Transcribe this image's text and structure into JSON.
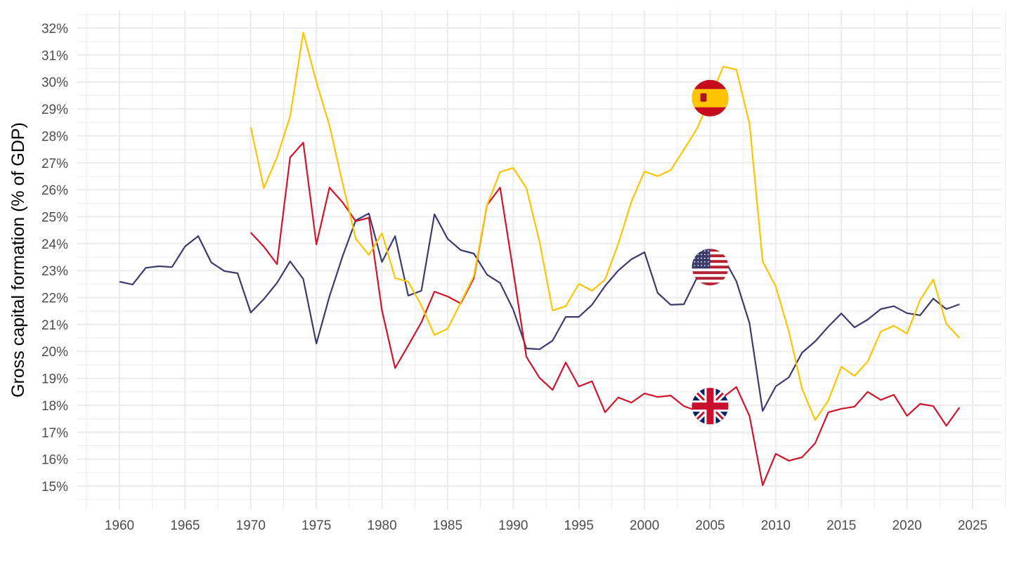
{
  "chart_data": {
    "type": "line",
    "title": "",
    "xlabel": "",
    "ylabel": "Gross capital formation (% of GDP)",
    "xlim": [
      1957.5,
      2027.5
    ],
    "ylim": [
      14.5,
      32.6
    ],
    "grid": true,
    "legend": "flag icons at year 2005 on each line",
    "x_ticks": [
      1960,
      1965,
      1970,
      1975,
      1980,
      1985,
      1990,
      1995,
      2000,
      2005,
      2010,
      2015,
      2020,
      2025
    ],
    "y_ticks": [
      15,
      16,
      17,
      18,
      19,
      20,
      21,
      22,
      23,
      24,
      25,
      26,
      27,
      28,
      29,
      30,
      31,
      32
    ],
    "y_tick_suffix": "%",
    "series": [
      {
        "name": "United States",
        "flag": "us-flag",
        "color": "#3c3b6e",
        "start": 1960,
        "values": [
          22.59,
          22.48,
          23.1,
          23.16,
          23.13,
          23.9,
          24.28,
          23.3,
          22.98,
          22.9,
          21.44,
          21.94,
          22.54,
          23.34,
          22.69,
          20.29,
          22.04,
          23.53,
          24.86,
          25.12,
          23.32,
          24.28,
          22.07,
          22.25,
          25.09,
          24.18,
          23.76,
          23.63,
          22.85,
          22.54,
          21.55,
          20.11,
          20.08,
          20.4,
          21.28,
          21.28,
          21.73,
          22.43,
          23.0,
          23.42,
          23.68,
          22.17,
          21.73,
          21.75,
          22.74,
          23.13,
          23.5,
          22.6,
          21.05,
          17.79,
          18.7,
          19.04,
          19.95,
          20.37,
          20.92,
          21.41,
          20.89,
          21.18,
          21.57,
          21.68,
          21.42,
          21.34,
          21.96,
          21.57,
          21.75
        ]
      },
      {
        "name": "United Kingdom",
        "flag": "uk-flag",
        "color": "#cf142b",
        "start": 1970,
        "values": [
          24.41,
          23.89,
          23.24,
          27.2,
          27.75,
          23.97,
          26.08,
          25.53,
          24.83,
          24.96,
          21.52,
          19.38,
          20.22,
          21.08,
          22.22,
          22.04,
          21.78,
          22.72,
          25.43,
          26.08,
          22.98,
          19.8,
          19.02,
          18.57,
          19.59,
          18.7,
          18.89,
          17.74,
          18.29,
          18.1,
          18.44,
          18.31,
          18.36,
          17.97,
          17.79,
          17.97,
          18.3,
          18.68,
          17.6,
          15.03,
          16.2,
          15.94,
          16.07,
          16.59,
          17.74,
          17.87,
          17.95,
          18.5,
          18.2,
          18.39,
          17.61,
          18.05,
          17.97,
          17.24,
          17.92
        ]
      },
      {
        "name": "Spain",
        "flag": "spain-flag",
        "color": "#ffc400",
        "start": 1970,
        "values": [
          28.32,
          26.06,
          27.2,
          28.72,
          31.84,
          30.0,
          28.38,
          26.24,
          24.18,
          23.58,
          24.39,
          22.72,
          22.59,
          21.7,
          20.61,
          20.84,
          21.81,
          22.8,
          25.43,
          26.66,
          26.81,
          26.06,
          24.07,
          21.52,
          21.68,
          22.51,
          22.25,
          22.67,
          23.99,
          25.56,
          26.68,
          26.5,
          26.73,
          27.49,
          28.27,
          29.4,
          30.57,
          30.46,
          28.45,
          23.34,
          22.41,
          20.74,
          18.62,
          17.45,
          18.18,
          19.43,
          19.09,
          19.62,
          20.74,
          20.95,
          20.66,
          21.91,
          22.67,
          21.02,
          20.5
        ]
      }
    ]
  }
}
